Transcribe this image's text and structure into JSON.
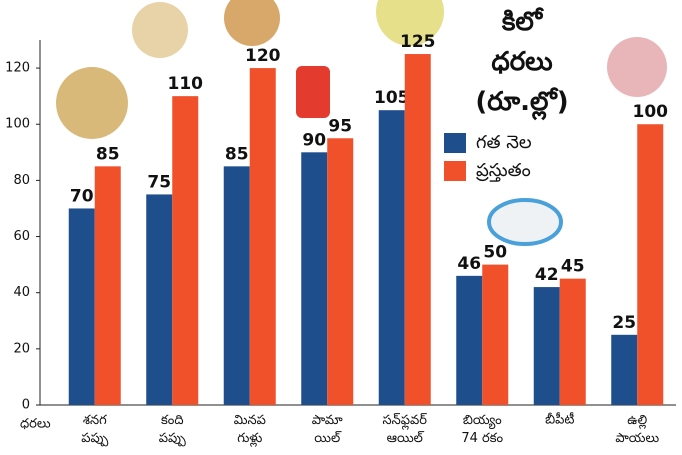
{
  "chart_data": {
    "type": "bar",
    "title": "కిలో ధరలు (రూ.ల్లో)",
    "y_label": "ధరలు",
    "categories": [
      "శనగ పప్పు",
      "కంది పప్పు",
      "మినప గుళ్లు",
      "పామా యిల్",
      "సన్‌ఫ్లవర్ ఆయిల్",
      "బియ్యం 74 రకం",
      "బీపీటీ",
      "ఉల్లి పాయలు"
    ],
    "series": [
      {
        "name": "గత నెల",
        "color": "#1f4e8c",
        "values": [
          70,
          75,
          85,
          90,
          105,
          46,
          42,
          25
        ]
      },
      {
        "name": "ప్రస్తుతం",
        "color": "#f0502a",
        "values": [
          85,
          110,
          120,
          95,
          125,
          50,
          45,
          100
        ]
      }
    ],
    "ylim": [
      0,
      130
    ],
    "yticks": [
      0,
      20,
      40,
      60,
      80,
      100,
      120
    ],
    "grid": false
  }
}
